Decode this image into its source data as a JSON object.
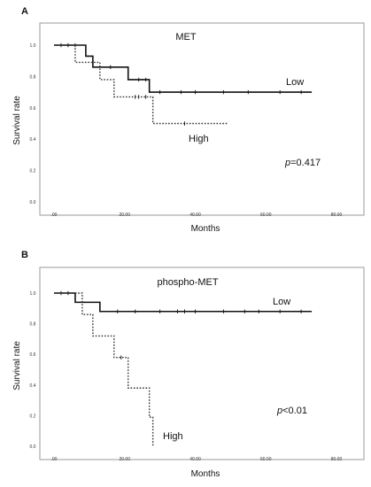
{
  "chart_data": [
    {
      "type": "line",
      "panel_label": "A",
      "title": "MET",
      "xlabel": "Months",
      "ylabel": "Survival rate",
      "xlim": [
        0,
        80
      ],
      "ylim": [
        0,
        1.0
      ],
      "x_ticks": [
        0,
        20,
        40,
        60,
        80
      ],
      "x_tick_labels": [
        ".00",
        "20.00",
        "40.00",
        "60.00",
        "80.00"
      ],
      "y_ticks": [
        0,
        0.2,
        0.4,
        0.6,
        0.8,
        1.0
      ],
      "y_tick_labels": [
        "0.0",
        "0.2",
        "0.4",
        "0.6",
        "0.8",
        "1.0"
      ],
      "annotation": {
        "prefix": "p",
        "value": "=0.417"
      },
      "series": [
        {
          "name": "Low",
          "style": "solid",
          "steps": [
            [
              0,
              1.0
            ],
            [
              9,
              0.93
            ],
            [
              11,
              0.86
            ],
            [
              21,
              0.78
            ],
            [
              27,
              0.7
            ],
            [
              73,
              0.7
            ]
          ],
          "censored": [
            [
              2,
              1.0
            ],
            [
              4,
              1.0
            ],
            [
              6,
              1.0
            ],
            [
              16,
              0.86
            ],
            [
              24,
              0.78
            ],
            [
              26,
              0.78
            ],
            [
              30,
              0.7
            ],
            [
              36,
              0.7
            ],
            [
              40,
              0.7
            ],
            [
              48,
              0.7
            ],
            [
              55,
              0.7
            ],
            [
              64,
              0.7
            ],
            [
              70,
              0.7
            ]
          ]
        },
        {
          "name": "High",
          "style": "dotted",
          "steps": [
            [
              0,
              1.0
            ],
            [
              6,
              0.89
            ],
            [
              13,
              0.78
            ],
            [
              17,
              0.67
            ],
            [
              28,
              0.5
            ],
            [
              49,
              0.5
            ]
          ],
          "censored": [
            [
              23,
              0.67
            ],
            [
              24,
              0.67
            ],
            [
              26,
              0.67
            ],
            [
              37,
              0.5
            ]
          ]
        }
      ]
    },
    {
      "type": "line",
      "panel_label": "B",
      "title": "phospho-MET",
      "xlabel": "Months",
      "ylabel": "Survival rate",
      "xlim": [
        0,
        80
      ],
      "ylim": [
        0,
        1.0
      ],
      "x_ticks": [
        0,
        20,
        40,
        60,
        80
      ],
      "x_tick_labels": [
        ".00",
        "20.00",
        "40.00",
        "60.00",
        "80.00"
      ],
      "y_ticks": [
        0,
        0.2,
        0.4,
        0.6,
        0.8,
        1.0
      ],
      "y_tick_labels": [
        "0.0",
        "0.2",
        "0.4",
        "0.6",
        "0.8",
        "1.0"
      ],
      "annotation": {
        "prefix": "p",
        "value": "<0.01"
      },
      "series": [
        {
          "name": "Low",
          "style": "solid",
          "steps": [
            [
              0,
              1.0
            ],
            [
              6,
              0.94
            ],
            [
              13,
              0.88
            ],
            [
              73,
              0.88
            ]
          ],
          "censored": [
            [
              2,
              1.0
            ],
            [
              4,
              1.0
            ],
            [
              18,
              0.88
            ],
            [
              23,
              0.88
            ],
            [
              30,
              0.88
            ],
            [
              35,
              0.88
            ],
            [
              37,
              0.88
            ],
            [
              40,
              0.88
            ],
            [
              48,
              0.88
            ],
            [
              54,
              0.88
            ],
            [
              58,
              0.88
            ],
            [
              64,
              0.88
            ],
            [
              70,
              0.88
            ]
          ]
        },
        {
          "name": "High",
          "style": "dotted",
          "steps": [
            [
              0,
              1.0
            ],
            [
              8,
              0.86
            ],
            [
              11,
              0.72
            ],
            [
              17,
              0.58
            ],
            [
              21,
              0.38
            ],
            [
              27,
              0.19
            ],
            [
              28,
              0.0
            ]
          ],
          "censored": [
            [
              19,
              0.58
            ]
          ]
        }
      ]
    }
  ]
}
